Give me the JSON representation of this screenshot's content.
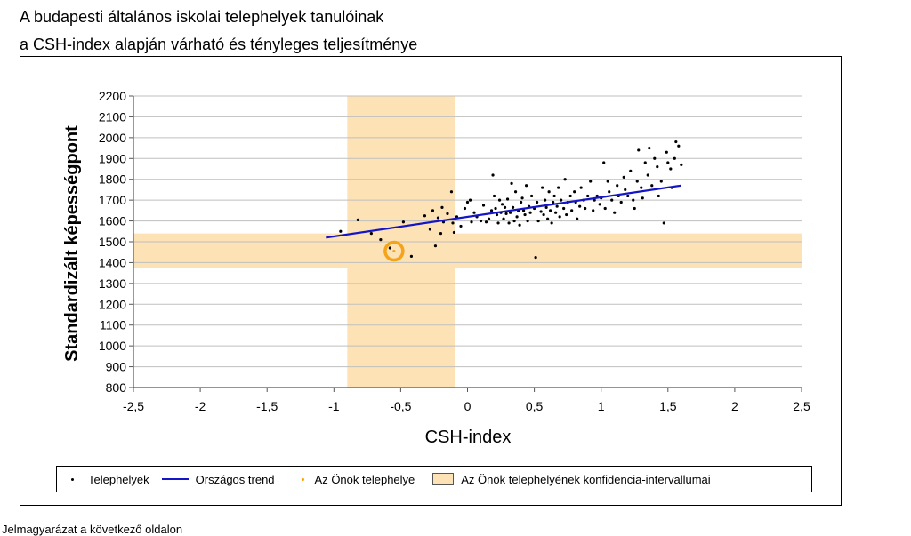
{
  "page": {
    "title_line1": "A budapesti általános iskolai telephelyek tanulóinak",
    "title_line2": "a CSH-index alapján várható és tényleges teljesítménye",
    "footer": "Jelmagyarázat a következő oldalon"
  },
  "legend": {
    "points_label": "Telephelyek",
    "trend_label": "Országos trend",
    "own_label": "Az Önök telephelye",
    "ci_label": "Az Önök telephelyének konfidencia-intervallumai"
  },
  "colors": {
    "points": "#000000",
    "trend": "#1515c8",
    "own_site": "#f5a317",
    "ci_band": "#fde2b6",
    "grid": "#bfbfbf"
  },
  "chart_data": {
    "type": "scatter",
    "xlabel": "CSH-index",
    "ylabel": "Standardizált képességpont",
    "xlim": [
      -2.5,
      2.5
    ],
    "ylim": [
      800,
      2200
    ],
    "x_ticks": [
      -2.5,
      -2,
      -1.5,
      -1,
      -0.5,
      0,
      0.5,
      1,
      1.5,
      2,
      2.5
    ],
    "x_tick_labels": [
      "-2,5",
      "-2",
      "-1,5",
      "-1",
      "-0,5",
      "0",
      "0,5",
      "1",
      "1,5",
      "2",
      "2,5"
    ],
    "y_ticks": [
      800,
      900,
      1000,
      1100,
      1200,
      1300,
      1400,
      1500,
      1600,
      1700,
      1800,
      1900,
      2000,
      2100,
      2200
    ],
    "y_tick_labels": [
      "800",
      "900",
      "1000",
      "1100",
      "1200",
      "1300",
      "1400",
      "1500",
      "1600",
      "1700",
      "1800",
      "1900",
      "2000",
      "2100",
      "2200"
    ],
    "grid": "horizontal",
    "legend_position": "bottom",
    "trend": {
      "x": [
        -1.06,
        1.6
      ],
      "y": [
        1520,
        1770
      ]
    },
    "own_site": {
      "x": -0.55,
      "y": 1455
    },
    "confidence_intervals": {
      "x_range": [
        -0.9,
        -0.09
      ],
      "y_range": [
        1375,
        1540
      ]
    },
    "points": [
      [
        -0.95,
        1550
      ],
      [
        -0.82,
        1605
      ],
      [
        -0.72,
        1540
      ],
      [
        -0.65,
        1510
      ],
      [
        -0.58,
        1470
      ],
      [
        -0.48,
        1595
      ],
      [
        -0.42,
        1430
      ],
      [
        -0.32,
        1625
      ],
      [
        -0.28,
        1560
      ],
      [
        -0.26,
        1650
      ],
      [
        -0.24,
        1480
      ],
      [
        -0.22,
        1615
      ],
      [
        -0.2,
        1540
      ],
      [
        -0.19,
        1665
      ],
      [
        -0.18,
        1595
      ],
      [
        -0.15,
        1635
      ],
      [
        -0.12,
        1740
      ],
      [
        -0.11,
        1590
      ],
      [
        -0.1,
        1545
      ],
      [
        -0.08,
        1620
      ],
      [
        -0.05,
        1575
      ],
      [
        -0.02,
        1660
      ],
      [
        0.0,
        1690
      ],
      [
        0.02,
        1700
      ],
      [
        0.03,
        1595
      ],
      [
        0.05,
        1640
      ],
      [
        0.07,
        1620
      ],
      [
        0.1,
        1600
      ],
      [
        0.12,
        1675
      ],
      [
        0.14,
        1595
      ],
      [
        0.16,
        1610
      ],
      [
        0.18,
        1650
      ],
      [
        0.19,
        1820
      ],
      [
        0.2,
        1720
      ],
      [
        0.21,
        1660
      ],
      [
        0.22,
        1630
      ],
      [
        0.23,
        1590
      ],
      [
        0.24,
        1700
      ],
      [
        0.25,
        1640
      ],
      [
        0.26,
        1680
      ],
      [
        0.27,
        1610
      ],
      [
        0.28,
        1665
      ],
      [
        0.29,
        1635
      ],
      [
        0.3,
        1705
      ],
      [
        0.31,
        1590
      ],
      [
        0.32,
        1640
      ],
      [
        0.33,
        1780
      ],
      [
        0.34,
        1665
      ],
      [
        0.35,
        1600
      ],
      [
        0.36,
        1740
      ],
      [
        0.37,
        1620
      ],
      [
        0.38,
        1650
      ],
      [
        0.39,
        1580
      ],
      [
        0.4,
        1690
      ],
      [
        0.41,
        1710
      ],
      [
        0.42,
        1650
      ],
      [
        0.43,
        1630
      ],
      [
        0.44,
        1770
      ],
      [
        0.45,
        1600
      ],
      [
        0.46,
        1670
      ],
      [
        0.47,
        1640
      ],
      [
        0.48,
        1720
      ],
      [
        0.5,
        1660
      ],
      [
        0.51,
        1425
      ],
      [
        0.52,
        1690
      ],
      [
        0.53,
        1600
      ],
      [
        0.55,
        1645
      ],
      [
        0.56,
        1760
      ],
      [
        0.57,
        1630
      ],
      [
        0.58,
        1700
      ],
      [
        0.59,
        1665
      ],
      [
        0.6,
        1610
      ],
      [
        0.61,
        1740
      ],
      [
        0.62,
        1650
      ],
      [
        0.63,
        1590
      ],
      [
        0.64,
        1690
      ],
      [
        0.65,
        1720
      ],
      [
        0.66,
        1640
      ],
      [
        0.67,
        1670
      ],
      [
        0.68,
        1760
      ],
      [
        0.69,
        1620
      ],
      [
        0.7,
        1700
      ],
      [
        0.72,
        1660
      ],
      [
        0.73,
        1800
      ],
      [
        0.74,
        1630
      ],
      [
        0.75,
        1690
      ],
      [
        0.77,
        1720
      ],
      [
        0.78,
        1650
      ],
      [
        0.8,
        1740
      ],
      [
        0.81,
        1690
      ],
      [
        0.82,
        1610
      ],
      [
        0.84,
        1670
      ],
      [
        0.85,
        1760
      ],
      [
        0.87,
        1700
      ],
      [
        0.88,
        1660
      ],
      [
        0.9,
        1720
      ],
      [
        0.92,
        1790
      ],
      [
        0.94,
        1650
      ],
      [
        0.95,
        1700
      ],
      [
        0.97,
        1720
      ],
      [
        0.99,
        1680
      ],
      [
        1.0,
        1710
      ],
      [
        1.02,
        1880
      ],
      [
        1.03,
        1660
      ],
      [
        1.05,
        1790
      ],
      [
        1.06,
        1740
      ],
      [
        1.08,
        1700
      ],
      [
        1.1,
        1640
      ],
      [
        1.12,
        1770
      ],
      [
        1.13,
        1720
      ],
      [
        1.15,
        1690
      ],
      [
        1.17,
        1810
      ],
      [
        1.18,
        1750
      ],
      [
        1.2,
        1720
      ],
      [
        1.22,
        1840
      ],
      [
        1.24,
        1700
      ],
      [
        1.25,
        1660
      ],
      [
        1.27,
        1790
      ],
      [
        1.28,
        1940
      ],
      [
        1.3,
        1760
      ],
      [
        1.31,
        1710
      ],
      [
        1.33,
        1880
      ],
      [
        1.35,
        1820
      ],
      [
        1.36,
        1950
      ],
      [
        1.38,
        1770
      ],
      [
        1.4,
        1900
      ],
      [
        1.42,
        1860
      ],
      [
        1.43,
        1720
      ],
      [
        1.45,
        1790
      ],
      [
        1.47,
        1590
      ],
      [
        1.49,
        1930
      ],
      [
        1.5,
        1880
      ],
      [
        1.52,
        1850
      ],
      [
        1.53,
        1760
      ],
      [
        1.55,
        1900
      ],
      [
        1.56,
        1980
      ],
      [
        1.58,
        1960
      ],
      [
        1.6,
        1870
      ]
    ]
  }
}
